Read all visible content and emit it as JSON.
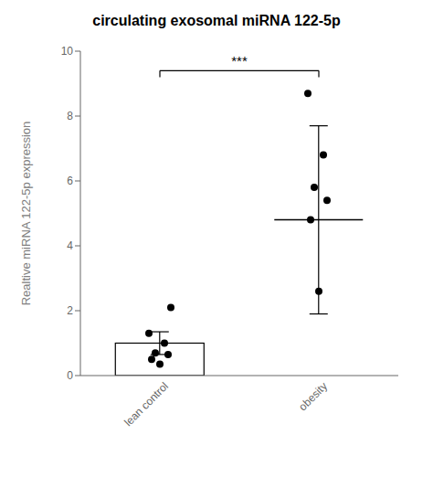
{
  "chart_data": {
    "type": "bar",
    "title": "circulating exosomal miRNA 122-5p",
    "ylabel": "Realtive miRNA 122-5p expression",
    "categories": [
      "lean control",
      "obesity"
    ],
    "series": [
      {
        "type": "bar",
        "color": "white",
        "values": [
          1.0,
          null
        ],
        "errors": [
          0.35,
          null
        ]
      },
      {
        "type": "mean_line",
        "color": "black",
        "values": [
          null,
          4.8
        ],
        "errors": [
          null,
          2.9
        ]
      },
      {
        "type": "scatter",
        "color": "black",
        "values": [
          [
            0.35,
            0.5,
            0.65,
            0.7,
            1.0,
            1.3,
            2.1
          ],
          [
            2.6,
            4.8,
            5.4,
            5.8,
            6.8,
            8.7
          ]
        ]
      }
    ],
    "annotations": [
      {
        "text": "***",
        "x": [
          "lean control",
          "obesity"
        ],
        "y": 9.4,
        "drop": 0.2
      }
    ],
    "ylim": [
      0,
      10
    ],
    "yticks": [
      0,
      2,
      4,
      6,
      8,
      10
    ],
    "grid": false
  }
}
